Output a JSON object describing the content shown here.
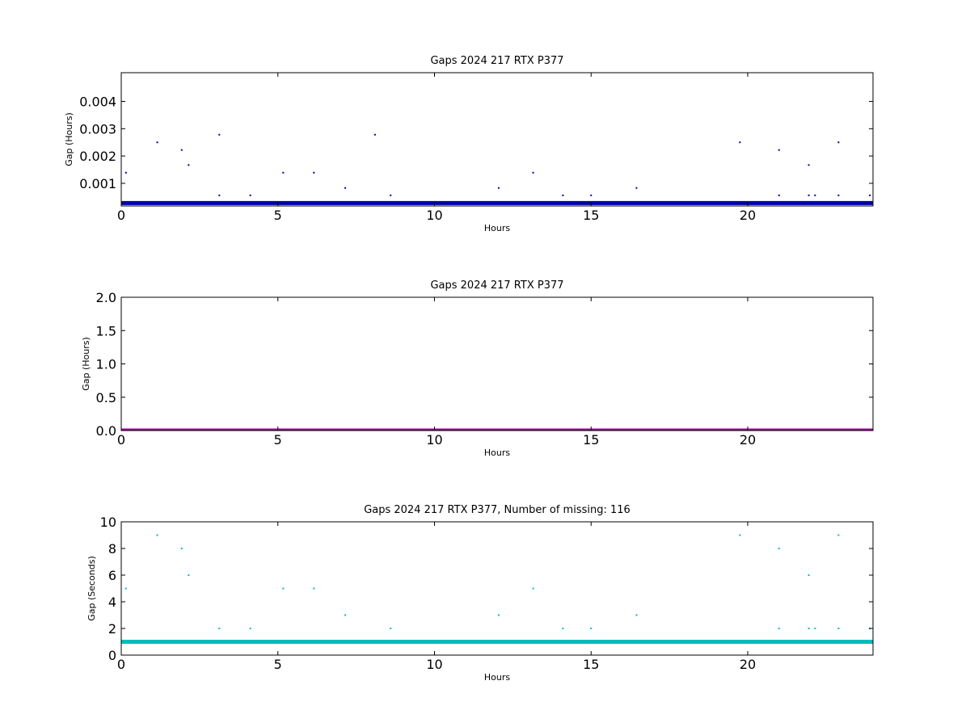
{
  "chart_data": [
    {
      "type": "scatter",
      "title": "Gaps 2024 217 RTX  P377",
      "xlabel": "Hours",
      "ylabel": "Gap (Hours)",
      "xlim": [
        0,
        24
      ],
      "ylim": [
        0.00017,
        0.00505
      ],
      "xticks": [
        "0",
        "5",
        "10",
        "15",
        "20"
      ],
      "yticks": [
        "0.001",
        "0.002",
        "0.003",
        "0.004"
      ],
      "color": "#0000aa",
      "baseline": 0.000278,
      "x": [
        0.15,
        1.15,
        1.93,
        2.15,
        3.13,
        3.13,
        4.12,
        5.17,
        6.15,
        7.15,
        8.1,
        8.6,
        12.05,
        13.15,
        14.1,
        15.0,
        16.45,
        19.75,
        21.0,
        21.0,
        21.95,
        21.95,
        22.15,
        22.9,
        22.9,
        23.9
      ],
      "y": [
        0.00139,
        0.0025,
        0.00222,
        0.00167,
        0.00278,
        0.00056,
        0.00056,
        0.00139,
        0.00139,
        0.00083,
        0.00278,
        0.00056,
        0.00083,
        0.00139,
        0.00056,
        0.00056,
        0.00083,
        0.0025,
        0.00222,
        0.00056,
        0.00167,
        0.00056,
        0.00056,
        0.0025,
        0.00056,
        0.00056
      ]
    },
    {
      "type": "scatter",
      "title": "Gaps 2024 217 RTX  P377",
      "xlabel": "Hours",
      "ylabel": "Gap (Hours)",
      "xlim": [
        0,
        24
      ],
      "ylim": [
        0,
        2
      ],
      "xticks": [
        "0",
        "5",
        "10",
        "15",
        "20"
      ],
      "yticks": [
        "0.0",
        "0.5",
        "1.0",
        "1.5",
        "2.0"
      ],
      "color": "#990099",
      "baseline": 0.0,
      "x": [],
      "y": []
    },
    {
      "type": "scatter",
      "title": "Gaps 2024 217 RTX  P377, Number of missing: 116",
      "xlabel": "Hours",
      "ylabel": "Gap (Seconds)",
      "xlim": [
        0,
        24
      ],
      "ylim": [
        0,
        10
      ],
      "xticks": [
        "0",
        "5",
        "10",
        "15",
        "20"
      ],
      "yticks": [
        "0",
        "2",
        "4",
        "6",
        "8",
        "10"
      ],
      "color": "#00bbbb",
      "baseline": 1,
      "x": [
        0.15,
        1.15,
        1.93,
        2.15,
        3.13,
        4.12,
        5.17,
        6.15,
        7.15,
        8.6,
        12.05,
        13.15,
        14.1,
        15.0,
        16.45,
        19.75,
        21.0,
        21.0,
        21.95,
        21.95,
        22.15,
        22.9,
        22.9,
        23.9
      ],
      "y": [
        5,
        9,
        8,
        6,
        2,
        2,
        5,
        5,
        3,
        2,
        3,
        5,
        2,
        2,
        3,
        9,
        8,
        2,
        6,
        2,
        2,
        9,
        2,
        2
      ]
    }
  ]
}
